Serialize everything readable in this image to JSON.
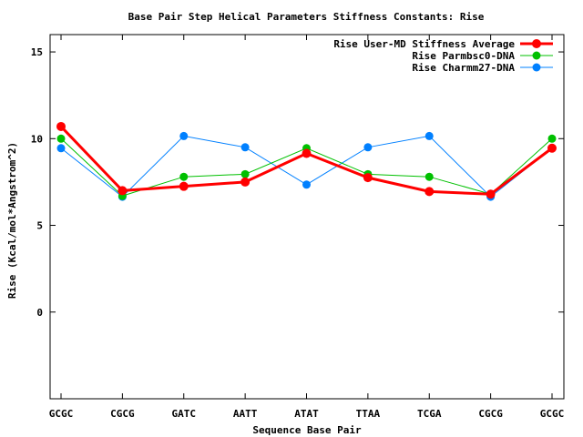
{
  "chart_data": {
    "type": "line",
    "title": "Base Pair Step Helical Parameters Stiffness Constants: Rise",
    "xlabel": "Sequence Base Pair",
    "ylabel": "Rise (Kcal/mol*Angstrom^2)",
    "categories": [
      "GCGC",
      "CGCG",
      "GATC",
      "AATT",
      "ATAT",
      "TTAA",
      "TCGA",
      "CGCG",
      "GCGC"
    ],
    "ylim": [
      -5,
      16
    ],
    "yticks": [
      0,
      5,
      10,
      15
    ],
    "ytick_labels": [
      "0",
      "5",
      "10",
      "15"
    ],
    "legend_position": "top-right",
    "grid": false,
    "series": [
      {
        "name": "Rise User-MD Stiffness Average",
        "color": "#ff0000",
        "values": [
          10.7,
          7.0,
          7.25,
          7.5,
          9.15,
          7.75,
          6.95,
          6.8,
          9.45
        ]
      },
      {
        "name": "Rise Parmbsc0-DNA",
        "color": "#00c000",
        "values": [
          10.0,
          6.7,
          7.8,
          7.95,
          9.45,
          7.95,
          7.8,
          6.8,
          10.0
        ]
      },
      {
        "name": "Rise Charmm27-DNA",
        "color": "#0080ff",
        "values": [
          9.45,
          6.65,
          10.15,
          9.5,
          7.35,
          9.5,
          10.15,
          6.65,
          9.45
        ]
      }
    ]
  }
}
